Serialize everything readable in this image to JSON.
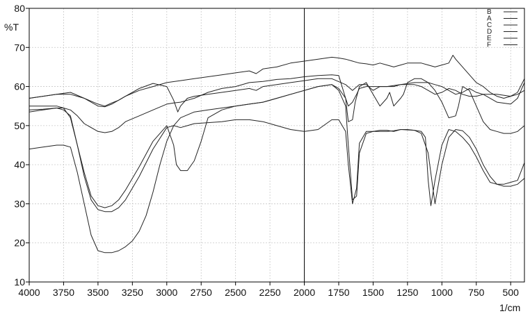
{
  "chart_data": {
    "type": "line",
    "title": "",
    "xlabel": "1/cm",
    "ylabel": "%T",
    "xlim": [
      4000,
      400
    ],
    "ylim": [
      10,
      80
    ],
    "x_reversed": true,
    "grid": true,
    "legend_position": "top-right",
    "x_ticks": [
      "4000",
      "3750",
      "3500",
      "3250",
      "3000",
      "2750",
      "2500",
      "2250",
      "2000",
      "1750",
      "1500",
      "1250",
      "1000",
      "750",
      "500"
    ],
    "x_tick_values": [
      4000,
      3750,
      3500,
      3250,
      3000,
      2750,
      2500,
      2250,
      2000,
      1750,
      1500,
      1250,
      1000,
      750,
      500
    ],
    "y_ticks": [
      "10",
      "20",
      "30",
      "40",
      "50",
      "60",
      "70",
      "80"
    ],
    "y_tick_values": [
      10,
      20,
      30,
      40,
      50,
      60,
      70,
      80
    ],
    "marker_line_x": 2000,
    "series": [
      {
        "name": "B",
        "x": [
          4000,
          3800,
          3700,
          3600,
          3500,
          3450,
          3400,
          3300,
          3200,
          3100,
          3000,
          2950,
          2920,
          2900,
          2850,
          2800,
          2700,
          2600,
          2500,
          2400,
          2350,
          2300,
          2200,
          2100,
          2000,
          1900,
          1800,
          1700,
          1650,
          1600,
          1550,
          1500,
          1450,
          1400,
          1300,
          1200,
          1100,
          1050,
          1000,
          950,
          900,
          850,
          800,
          750,
          700,
          600,
          500,
          450,
          400
        ],
        "y": [
          57,
          58,
          58,
          57,
          55,
          54.8,
          55.5,
          57.5,
          59.5,
          60.8,
          60,
          56.5,
          53.5,
          55,
          57,
          57.5,
          58,
          58.5,
          59,
          59.5,
          59,
          60,
          60.5,
          61,
          61.5,
          62,
          62,
          60.5,
          59,
          60.5,
          60.5,
          59,
          60,
          60,
          60.5,
          61,
          61,
          60.5,
          60,
          59,
          58,
          58.5,
          59.5,
          58.5,
          58,
          56,
          55.5,
          57,
          61
        ]
      },
      {
        "name": "A",
        "x": [
          4000,
          3900,
          3800,
          3750,
          3700,
          3650,
          3600,
          3550,
          3500,
          3450,
          3400,
          3350,
          3300,
          3250,
          3200,
          3150,
          3100,
          3050,
          3000,
          2950,
          2900,
          2800,
          2700,
          2600,
          2500,
          2400,
          2300,
          2200,
          2100,
          2000,
          1900,
          1800,
          1750,
          1700,
          1680,
          1650,
          1620,
          1600,
          1550,
          1500,
          1450,
          1400,
          1350,
          1300,
          1200,
          1150,
          1120,
          1100,
          1080,
          1050,
          1000,
          950,
          900,
          850,
          800,
          750,
          700,
          650,
          600,
          550,
          500,
          450,
          400
        ],
        "y": [
          44,
          44.5,
          45,
          45,
          44.5,
          38,
          30,
          22,
          18,
          17.5,
          17.5,
          18,
          19,
          20.5,
          23,
          27,
          33,
          40,
          46,
          50,
          52,
          53.5,
          54,
          54.5,
          55,
          55.5,
          56,
          57,
          58,
          59,
          60,
          60.5,
          59,
          55,
          45,
          31,
          32,
          43,
          48,
          48.5,
          48.5,
          48.5,
          48.7,
          49,
          48.8,
          48.5,
          47,
          36,
          29.5,
          36,
          45,
          49,
          48.5,
          47,
          45,
          42,
          38.5,
          35.5,
          35,
          35,
          35.5,
          36,
          40.5
        ]
      },
      {
        "name": "C",
        "x": [
          4000,
          3900,
          3800,
          3750,
          3700,
          3650,
          3600,
          3550,
          3500,
          3450,
          3400,
          3350,
          3300,
          3200,
          3100,
          3000,
          2950,
          2900,
          2850,
          2800,
          2600,
          2500,
          2400,
          2300,
          2200,
          2100,
          2000,
          1900,
          1800,
          1750,
          1700,
          1680,
          1650,
          1620,
          1600,
          1550,
          1500,
          1450,
          1400,
          1350,
          1300,
          1250,
          1200,
          1150,
          1100,
          1050,
          1000,
          950,
          900,
          850,
          800,
          750,
          700,
          650,
          600,
          550,
          500,
          450,
          400
        ],
        "y": [
          54,
          54.2,
          54.5,
          54,
          52.5,
          45,
          37,
          31,
          28.5,
          28,
          28,
          29,
          31,
          37,
          44,
          49.5,
          50,
          49.5,
          50,
          50.5,
          51,
          51.5,
          51.5,
          51,
          50,
          49,
          48.5,
          49,
          51.5,
          51.5,
          48.5,
          40,
          30,
          34,
          45.5,
          48.5,
          48.5,
          48.8,
          48.8,
          48.5,
          49,
          49,
          48.8,
          48,
          43,
          30,
          40,
          47,
          49,
          48.7,
          47,
          44,
          40,
          37,
          35,
          34.5,
          34.5,
          35,
          36.5
        ]
      },
      {
        "name": "D",
        "x": [
          4000,
          3900,
          3800,
          3750,
          3700,
          3650,
          3600,
          3550,
          3500,
          3450,
          3400,
          3350,
          3300,
          3200,
          3100,
          3000,
          2950,
          2930,
          2900,
          2880,
          2850,
          2800,
          2750,
          2700,
          2600,
          2500,
          2400,
          2300,
          2200,
          2100,
          2000,
          1900,
          1800,
          1750,
          1700,
          1680,
          1650,
          1620,
          1600,
          1550,
          1500,
          1450,
          1400,
          1350,
          1300,
          1250,
          1200,
          1150,
          1100,
          1050,
          1000,
          950,
          900,
          850,
          800,
          750,
          700,
          600,
          500,
          450,
          400
        ],
        "y": [
          55,
          55,
          55,
          54.5,
          52,
          45,
          38,
          32,
          29.5,
          29,
          29.5,
          31,
          33.5,
          39.5,
          46,
          50,
          45,
          40,
          38.5,
          38.5,
          38.5,
          41,
          46,
          52,
          54,
          55,
          55.5,
          56,
          57,
          58,
          59,
          60,
          60.5,
          59.5,
          57,
          55,
          56,
          58,
          59.5,
          60,
          60,
          60,
          60,
          60,
          60.5,
          60.5,
          60.5,
          60,
          59,
          58,
          58.5,
          59.5,
          59,
          58,
          57.5,
          57.5,
          58,
          58,
          57.5,
          58,
          59
        ]
      },
      {
        "name": "E",
        "x": [
          4000,
          3900,
          3800,
          3750,
          3700,
          3650,
          3600,
          3500,
          3450,
          3400,
          3350,
          3300,
          3200,
          3100,
          3000,
          2950,
          2900,
          2850,
          2800,
          2700,
          2600,
          2500,
          2400,
          2300,
          2200,
          2100,
          2000,
          1900,
          1800,
          1750,
          1700,
          1680,
          1650,
          1630,
          1600,
          1550,
          1500,
          1450,
          1400,
          1380,
          1350,
          1300,
          1280,
          1250,
          1200,
          1150,
          1100,
          1050,
          1000,
          950,
          900,
          880,
          850,
          800,
          750,
          700,
          650,
          600,
          550,
          500,
          450,
          400
        ],
        "y": [
          53.5,
          54,
          54.5,
          54.5,
          54,
          52.5,
          50.5,
          48.5,
          48.2,
          48.5,
          49.5,
          51,
          52.5,
          54,
          55.5,
          55.8,
          56,
          56.5,
          57,
          58.5,
          59.5,
          60,
          61,
          61.3,
          61.8,
          62,
          62.5,
          62.8,
          63,
          62.8,
          57,
          51,
          51.5,
          56,
          60,
          61,
          58,
          55,
          57,
          58.5,
          55,
          57,
          58,
          61,
          62,
          62,
          61,
          59,
          56,
          52,
          52.5,
          55,
          60,
          59,
          55,
          51,
          49,
          48.5,
          48,
          48,
          48.5,
          50
        ]
      },
      {
        "name": "F",
        "x": [
          4000,
          3900,
          3800,
          3700,
          3600,
          3500,
          3450,
          3400,
          3350,
          3300,
          3200,
          3100,
          3000,
          2900,
          2800,
          2700,
          2600,
          2500,
          2400,
          2350,
          2300,
          2200,
          2100,
          2000,
          1900,
          1800,
          1750,
          1700,
          1650,
          1600,
          1550,
          1500,
          1450,
          1400,
          1350,
          1300,
          1250,
          1200,
          1150,
          1100,
          1050,
          1000,
          950,
          920,
          900,
          850,
          800,
          750,
          700,
          650,
          600,
          550,
          500,
          450,
          400
        ],
        "y": [
          57,
          57.5,
          58,
          58.5,
          57,
          55.5,
          55,
          55.8,
          56.5,
          57.5,
          59,
          60,
          61,
          61.5,
          62,
          62.5,
          63,
          63.5,
          64,
          63.3,
          64.5,
          65,
          66,
          66.5,
          67,
          67.5,
          67.3,
          67,
          66.5,
          66,
          65.8,
          65.5,
          66,
          65.5,
          65,
          65.5,
          66,
          66,
          66,
          65.5,
          65,
          65.5,
          66,
          68,
          67,
          65,
          63,
          61,
          60,
          58.5,
          57.5,
          57,
          57.5,
          58.5,
          62
        ]
      }
    ]
  }
}
